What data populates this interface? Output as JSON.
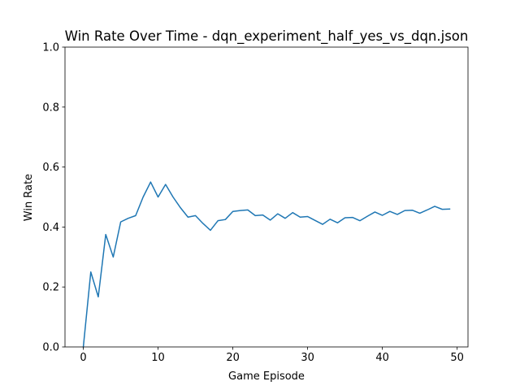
{
  "chart_data": {
    "type": "line",
    "title": "Win Rate Over Time - dqn_experiment_half_yes_vs_dqn.json",
    "xlabel": "Game Episode",
    "ylabel": "Win Rate",
    "xlim": [
      -2.45,
      51.45
    ],
    "ylim": [
      0.0,
      1.0
    ],
    "xticks": [
      "0",
      "10",
      "20",
      "30",
      "40",
      "50"
    ],
    "yticks": [
      "0.0",
      "0.2",
      "0.4",
      "0.6",
      "0.8",
      "1.0"
    ],
    "grid": false,
    "legend": "none",
    "series": [
      {
        "color": "#1f77b4",
        "x": [
          0,
          1,
          2,
          3,
          4,
          5,
          6,
          7,
          8,
          9,
          10,
          11,
          12,
          13,
          14,
          15,
          16,
          17,
          18,
          19,
          20,
          21,
          22,
          23,
          24,
          25,
          26,
          27,
          28,
          29,
          30,
          31,
          32,
          33,
          34,
          35,
          36,
          37,
          38,
          39,
          40,
          41,
          42,
          43,
          44,
          45,
          46,
          47,
          48,
          49
        ],
        "y": [
          0.0,
          0.25,
          0.167,
          0.375,
          0.3,
          0.417,
          0.429,
          0.438,
          0.5,
          0.55,
          0.5,
          0.542,
          0.5,
          0.464,
          0.433,
          0.438,
          0.412,
          0.389,
          0.421,
          0.425,
          0.452,
          0.455,
          0.457,
          0.438,
          0.44,
          0.423,
          0.444,
          0.429,
          0.448,
          0.433,
          0.435,
          0.422,
          0.409,
          0.426,
          0.414,
          0.431,
          0.432,
          0.421,
          0.436,
          0.45,
          0.439,
          0.452,
          0.442,
          0.455,
          0.456,
          0.446,
          0.457,
          0.469,
          0.459,
          0.46
        ]
      }
    ]
  }
}
